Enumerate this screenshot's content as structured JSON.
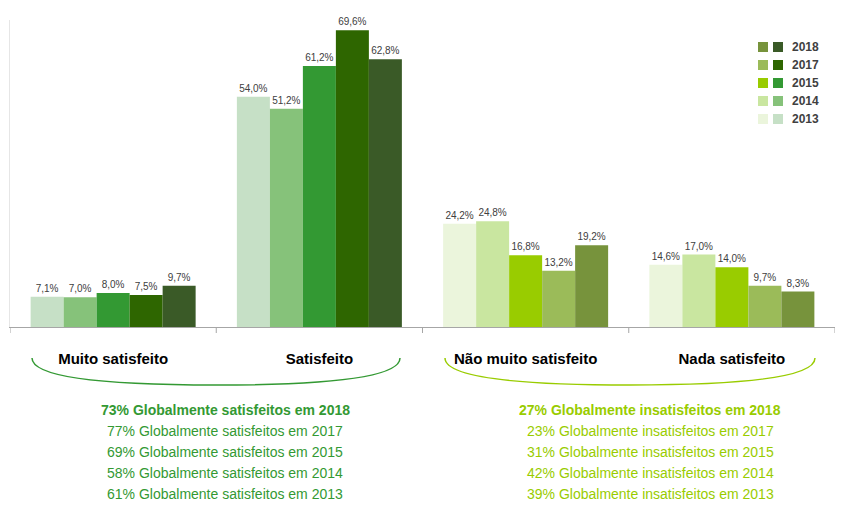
{
  "chart_data": {
    "type": "bar",
    "categories": [
      "Muito satisfeito",
      "Satisfeito",
      "Não muito satisfeito",
      "Nada satisfeito"
    ],
    "series": [
      {
        "name": "2013",
        "values": [
          7.1,
          54.0,
          24.2,
          14.6
        ],
        "value_labels": [
          "7,1%",
          "54,0%",
          "24,2%",
          "14,6%"
        ],
        "colors": [
          "#c6e0c6",
          "#c6e0c6",
          "#ebf5dc",
          "#ebf5dc"
        ]
      },
      {
        "name": "2014",
        "values": [
          7.0,
          51.2,
          24.8,
          17.0
        ],
        "value_labels": [
          "7,0%",
          "51,2%",
          "24,8%",
          "17,0%"
        ],
        "colors": [
          "#86c27a",
          "#86c27a",
          "#c9e6a0",
          "#c9e6a0"
        ]
      },
      {
        "name": "2015",
        "values": [
          8.0,
          61.2,
          16.8,
          14.0
        ],
        "value_labels": [
          "8,0%",
          "61,2%",
          "16,8%",
          "14,0%"
        ],
        "colors": [
          "#339933",
          "#339933",
          "#99cc00",
          "#99cc00"
        ]
      },
      {
        "name": "2017",
        "values": [
          7.5,
          69.6,
          13.2,
          9.7
        ],
        "value_labels": [
          "7,5%",
          "69,6%",
          "13,2%",
          "9,7%"
        ],
        "colors": [
          "#2e6600",
          "#2e6600",
          "#9bbb59",
          "#9bbb59"
        ]
      },
      {
        "name": "2018",
        "values": [
          9.7,
          62.8,
          19.2,
          8.3
        ],
        "value_labels": [
          "9,7%",
          "62,8%",
          "19,2%",
          "8,3%"
        ],
        "colors": [
          "#3a5a27",
          "#3a5a27",
          "#77933c",
          "#77933c"
        ]
      }
    ],
    "ylim": [
      0,
      72
    ],
    "grid": false,
    "tick_labels": "x",
    "data_labels": true,
    "legend": "upper right",
    "annotations": [
      {
        "color": "#339933",
        "lines": [
          "73% Globalmente satisfeitos em 2018",
          "77% Globalmente satisfeitos em 2017",
          "69% Globalmente satisfeitos em 2015",
          "58% Globalmente satisfeitos em 2014",
          "61% Globalmente satisfeitos em 2013"
        ]
      },
      {
        "color": "#99cc00",
        "lines": [
          "27% Globalmente insatisfeitos em 2018",
          "23% Globalmente insatisfeitos em 2017",
          "31% Globalmente insatisfeitos em 2015",
          "42% Globalmente insatisfeitos em 2014",
          "39% Globalmente insatisfeitos em 2013"
        ]
      }
    ]
  }
}
